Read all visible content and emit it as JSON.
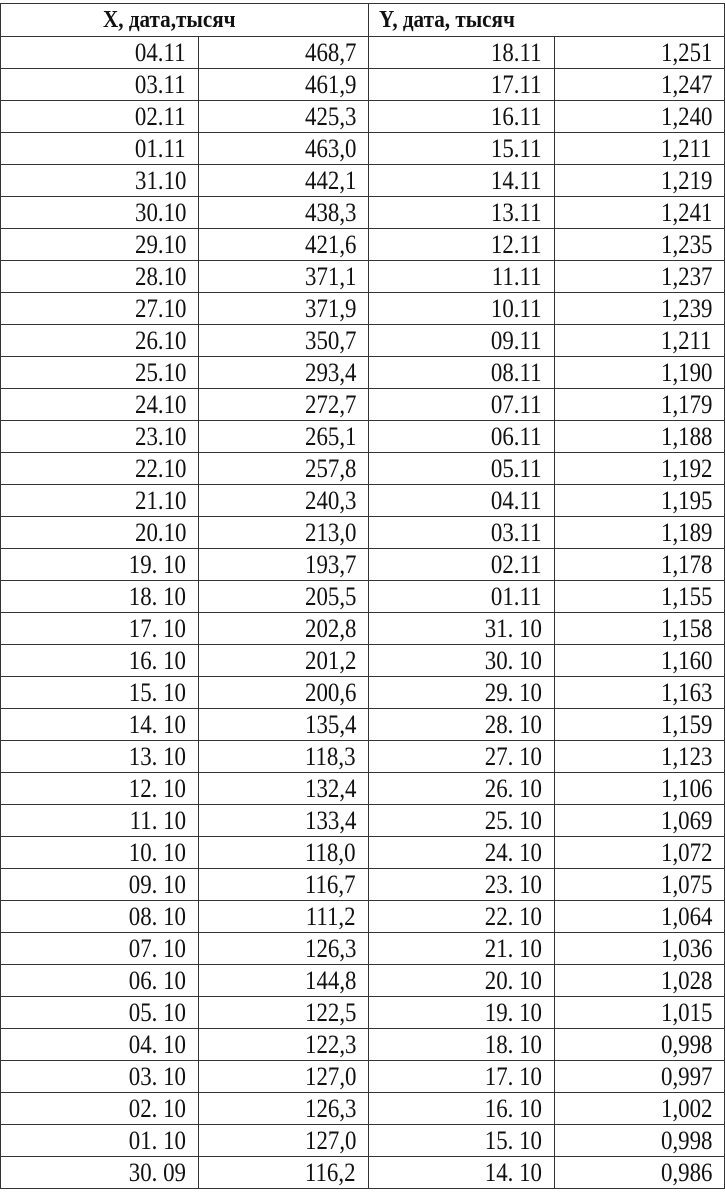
{
  "header": {
    "x_label": "X, дата,тысяч",
    "y_label": "Y, дата, тысяч"
  },
  "rows": [
    {
      "x_date": "04.11",
      "x_val": "468,7",
      "y_date": "18.11",
      "y_val": "1,251"
    },
    {
      "x_date": "03.11",
      "x_val": "461,9",
      "y_date": "17.11",
      "y_val": "1,247"
    },
    {
      "x_date": "02.11",
      "x_val": "425,3",
      "y_date": "16.11",
      "y_val": "1,240"
    },
    {
      "x_date": "01.11",
      "x_val": "463,0",
      "y_date": "15.11",
      "y_val": "1,211"
    },
    {
      "x_date": "31.10",
      "x_val": "442,1",
      "y_date": "14.11",
      "y_val": "1,219"
    },
    {
      "x_date": "30.10",
      "x_val": "438,3",
      "y_date": "13.11",
      "y_val": "1,241"
    },
    {
      "x_date": "29.10",
      "x_val": "421,6",
      "y_date": "12.11",
      "y_val": "1,235"
    },
    {
      "x_date": "28.10",
      "x_val": "371,1",
      "y_date": "11.11",
      "y_val": "1,237"
    },
    {
      "x_date": "27.10",
      "x_val": "371,9",
      "y_date": "10.11",
      "y_val": "1,239"
    },
    {
      "x_date": "26.10",
      "x_val": "350,7",
      "y_date": "09.11",
      "y_val": "1,211"
    },
    {
      "x_date": "25.10",
      "x_val": "293,4",
      "y_date": "08.11",
      "y_val": "1,190"
    },
    {
      "x_date": "24.10",
      "x_val": "272,7",
      "y_date": "07.11",
      "y_val": "1,179"
    },
    {
      "x_date": "23.10",
      "x_val": "265,1",
      "y_date": "06.11",
      "y_val": "1,188"
    },
    {
      "x_date": "22.10",
      "x_val": "257,8",
      "y_date": "05.11",
      "y_val": "1,192"
    },
    {
      "x_date": "21.10",
      "x_val": "240,3",
      "y_date": "04.11",
      "y_val": "1,195"
    },
    {
      "x_date": "20.10",
      "x_val": "213,0",
      "y_date": "03.11",
      "y_val": "1,189"
    },
    {
      "x_date": "19. 10",
      "x_val": "193,7",
      "y_date": "02.11",
      "y_val": "1,178"
    },
    {
      "x_date": "18. 10",
      "x_val": "205,5",
      "y_date": "01.11",
      "y_val": "1,155"
    },
    {
      "x_date": "17. 10",
      "x_val": "202,8",
      "y_date": "31. 10",
      "y_val": "1,158"
    },
    {
      "x_date": "16. 10",
      "x_val": "201,2",
      "y_date": "30. 10",
      "y_val": "1,160"
    },
    {
      "x_date": "15. 10",
      "x_val": "200,6",
      "y_date": "29. 10",
      "y_val": "1,163"
    },
    {
      "x_date": "14. 10",
      "x_val": "135,4",
      "y_date": "28. 10",
      "y_val": "1,159"
    },
    {
      "x_date": "13. 10",
      "x_val": "118,3",
      "y_date": "27. 10",
      "y_val": "1,123"
    },
    {
      "x_date": "12. 10",
      "x_val": "132,4",
      "y_date": "26. 10",
      "y_val": "1,106"
    },
    {
      "x_date": "11. 10",
      "x_val": "133,4",
      "y_date": "25. 10",
      "y_val": "1,069"
    },
    {
      "x_date": "10. 10",
      "x_val": "118,0",
      "y_date": "24. 10",
      "y_val": "1,072"
    },
    {
      "x_date": "09. 10",
      "x_val": "116,7",
      "y_date": "23. 10",
      "y_val": "1,075"
    },
    {
      "x_date": "08. 10",
      "x_val": "111,2",
      "y_date": "22. 10",
      "y_val": "1,064"
    },
    {
      "x_date": "07. 10",
      "x_val": "126,3",
      "y_date": "21. 10",
      "y_val": "1,036"
    },
    {
      "x_date": "06. 10",
      "x_val": "144,8",
      "y_date": "20. 10",
      "y_val": "1,028"
    },
    {
      "x_date": "05. 10",
      "x_val": "122,5",
      "y_date": "19. 10",
      "y_val": "1,015"
    },
    {
      "x_date": "04. 10",
      "x_val": "122,3",
      "y_date": "18. 10",
      "y_val": "0,998"
    },
    {
      "x_date": "03. 10",
      "x_val": "127,0",
      "y_date": "17. 10",
      "y_val": "0,997"
    },
    {
      "x_date": "02. 10",
      "x_val": "126,3",
      "y_date": "16. 10",
      "y_val": "1,002"
    },
    {
      "x_date": "01. 10",
      "x_val": "127,0",
      "y_date": "15. 10",
      "y_val": "0,998"
    },
    {
      "x_date": "30. 09",
      "x_val": "116,2",
      "y_date": "14. 10",
      "y_val": "0,986"
    }
  ]
}
